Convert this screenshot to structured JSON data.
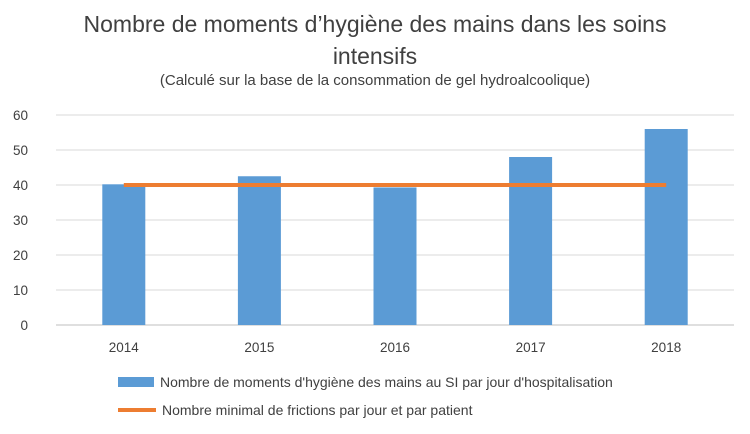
{
  "chart_data": {
    "type": "bar",
    "title": "Nombre de moments d’hygiène des mains dans les soins intensifs",
    "subtitle": "(Calculé sur la base de la consommation de gel hydroalcoolique)",
    "categories": [
      "2014",
      "2015",
      "2016",
      "2017",
      "2018"
    ],
    "ylim": [
      0,
      60
    ],
    "yticks": [
      0,
      10,
      20,
      30,
      40,
      50,
      60
    ],
    "grid": true,
    "legend_position": "bottom",
    "series": [
      {
        "name": "Nombre de moments d'hygiène des mains au SI par jour d'hospitalisation",
        "type": "bar",
        "color": "#5b9bd5",
        "values": [
          40.2,
          42.5,
          39.3,
          48,
          56
        ]
      },
      {
        "name": "Nombre minimal de frictions par jour et par patient",
        "type": "line",
        "color": "#ed7d31",
        "values": [
          40,
          40,
          40,
          40,
          40
        ]
      }
    ]
  }
}
